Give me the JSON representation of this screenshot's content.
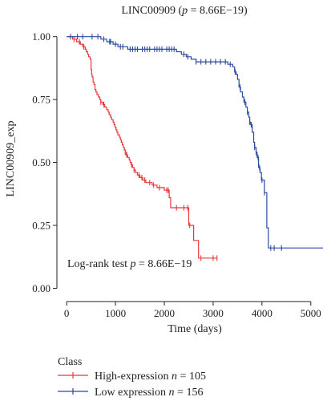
{
  "chart_data": {
    "type": "line",
    "title": {
      "prefix": "LINC00909 (",
      "p_symbol": "p",
      "suffix": " = 8.66E−19)"
    },
    "xlabel": "Time (days)",
    "ylabel": "LINC00909_exp",
    "xlim": [
      -200,
      5250
    ],
    "ylim": [
      -0.04,
      1.05
    ],
    "x_ticks": [
      {
        "v": 0,
        "label": "0"
      },
      {
        "v": 1000,
        "label": "1000"
      },
      {
        "v": 2000,
        "label": "2000"
      },
      {
        "v": 3000,
        "label": "3000"
      },
      {
        "v": 4000,
        "label": "4000"
      },
      {
        "v": 5000,
        "label": "5000"
      }
    ],
    "y_ticks": [
      {
        "v": 0,
        "label": "0.00"
      },
      {
        "v": 0.25,
        "label": "0.25"
      },
      {
        "v": 0.5,
        "label": "0.50"
      },
      {
        "v": 0.75,
        "label": "0.75"
      },
      {
        "v": 1,
        "label": "1.00"
      }
    ],
    "grid": false,
    "annotation": {
      "prefix": "Log-rank test ",
      "p_symbol": "p",
      "suffix": " = 8.66E−19"
    },
    "legend": {
      "title": "Class",
      "position": "bottom-left",
      "entries": [
        {
          "label_main": "High-expression ",
          "n_symbol": "n",
          "n_value": " = 105",
          "color": "#e8383b"
        },
        {
          "label_main": "Low expression ",
          "n_symbol": "n",
          "n_value": " = 156",
          "color": "#2b4ba0"
        }
      ]
    },
    "series": [
      {
        "name": "High-expression",
        "color": "#e8383b",
        "steps": [
          [
            0,
            1.0
          ],
          [
            120,
            0.99
          ],
          [
            200,
            0.98
          ],
          [
            280,
            0.97
          ],
          [
            330,
            0.96
          ],
          [
            380,
            0.95
          ],
          [
            400,
            0.94
          ],
          [
            430,
            0.93
          ],
          [
            450,
            0.92
          ],
          [
            480,
            0.91
          ],
          [
            500,
            0.87
          ],
          [
            510,
            0.85
          ],
          [
            520,
            0.84
          ],
          [
            540,
            0.82
          ],
          [
            560,
            0.81
          ],
          [
            580,
            0.79
          ],
          [
            600,
            0.78
          ],
          [
            620,
            0.77
          ],
          [
            650,
            0.76
          ],
          [
            680,
            0.75
          ],
          [
            700,
            0.74
          ],
          [
            740,
            0.73
          ],
          [
            780,
            0.72
          ],
          [
            820,
            0.71
          ],
          [
            850,
            0.7
          ],
          [
            870,
            0.69
          ],
          [
            900,
            0.68
          ],
          [
            920,
            0.67
          ],
          [
            950,
            0.66
          ],
          [
            970,
            0.65
          ],
          [
            990,
            0.64
          ],
          [
            1010,
            0.63
          ],
          [
            1030,
            0.62
          ],
          [
            1050,
            0.61
          ],
          [
            1080,
            0.6
          ],
          [
            1100,
            0.59
          ],
          [
            1120,
            0.58
          ],
          [
            1140,
            0.57
          ],
          [
            1160,
            0.56
          ],
          [
            1180,
            0.55
          ],
          [
            1200,
            0.54
          ],
          [
            1220,
            0.53
          ],
          [
            1250,
            0.52
          ],
          [
            1280,
            0.51
          ],
          [
            1300,
            0.5
          ],
          [
            1320,
            0.49
          ],
          [
            1350,
            0.48
          ],
          [
            1380,
            0.47
          ],
          [
            1410,
            0.46
          ],
          [
            1450,
            0.45
          ],
          [
            1500,
            0.44
          ],
          [
            1560,
            0.43
          ],
          [
            1620,
            0.42
          ],
          [
            1750,
            0.41
          ],
          [
            1850,
            0.4
          ],
          [
            2000,
            0.39
          ],
          [
            2100,
            0.36
          ],
          [
            2130,
            0.32
          ],
          [
            2500,
            0.25
          ],
          [
            2600,
            0.19
          ],
          [
            2700,
            0.12
          ]
        ],
        "end_x": 3080,
        "censor_x": [
          150,
          260,
          350,
          700,
          760,
          1200,
          1230,
          1330,
          1380,
          1480,
          1540,
          1600,
          1700,
          1780,
          1900,
          2050,
          2080,
          2250,
          2400,
          2480,
          2520,
          2750,
          3000,
          3080
        ]
      },
      {
        "name": "Low expression",
        "color": "#2b4ba0",
        "steps": [
          [
            0,
            1.0
          ],
          [
            700,
            0.99
          ],
          [
            820,
            0.98
          ],
          [
            950,
            0.97
          ],
          [
            1050,
            0.96
          ],
          [
            1250,
            0.95
          ],
          [
            2250,
            0.94
          ],
          [
            2350,
            0.93
          ],
          [
            2450,
            0.92
          ],
          [
            2550,
            0.91
          ],
          [
            2650,
            0.9
          ],
          [
            3300,
            0.89
          ],
          [
            3400,
            0.88
          ],
          [
            3440,
            0.86
          ],
          [
            3470,
            0.85
          ],
          [
            3500,
            0.83
          ],
          [
            3530,
            0.8
          ],
          [
            3560,
            0.78
          ],
          [
            3600,
            0.76
          ],
          [
            3630,
            0.74
          ],
          [
            3670,
            0.72
          ],
          [
            3700,
            0.7
          ],
          [
            3730,
            0.68
          ],
          [
            3750,
            0.66
          ],
          [
            3770,
            0.65
          ],
          [
            3800,
            0.62
          ],
          [
            3830,
            0.58
          ],
          [
            3850,
            0.56
          ],
          [
            3880,
            0.54
          ],
          [
            3900,
            0.52
          ],
          [
            3930,
            0.48
          ],
          [
            3960,
            0.46
          ],
          [
            3990,
            0.43
          ],
          [
            4050,
            0.38
          ],
          [
            4100,
            0.24
          ],
          [
            4130,
            0.16
          ]
        ],
        "end_x": 5250,
        "censor_x": [
          80,
          220,
          330,
          520,
          640,
          760,
          880,
          900,
          1000,
          1100,
          1150,
          1300,
          1350,
          1400,
          1450,
          1550,
          1600,
          1650,
          1700,
          1800,
          1850,
          1900,
          1950,
          2050,
          2100,
          2150,
          2200,
          2400,
          2480,
          2650,
          2750,
          2850,
          2950,
          3050,
          3150,
          3250,
          3350,
          3450,
          3550,
          3650,
          3700,
          3750,
          3780,
          3850,
          3880,
          3920,
          3950,
          4000,
          4050,
          4180,
          4250,
          4400
        ]
      }
    ]
  }
}
